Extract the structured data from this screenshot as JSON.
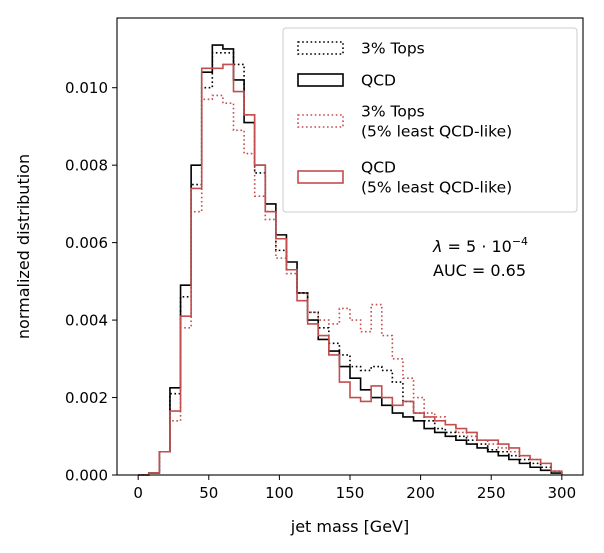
{
  "chart_data": {
    "type": "histogram-step",
    "xlabel": "jet mass [GeV]",
    "ylabel": "normalized distribution",
    "xlim": [
      -15,
      315
    ],
    "ylim": [
      0,
      0.0118
    ],
    "xticks": [
      0,
      50,
      100,
      150,
      200,
      250,
      300
    ],
    "xtick_labels": [
      "0",
      "50",
      "100",
      "150",
      "200",
      "250",
      "300"
    ],
    "yticks": [
      0,
      0.002,
      0.004,
      0.006,
      0.008,
      0.01
    ],
    "ytick_labels": [
      "0.000",
      "0.002",
      "0.004",
      "0.006",
      "0.008",
      "0.010"
    ],
    "grid": false,
    "legend_position": "top-right",
    "bin_edges": [
      0,
      7.5,
      15,
      22.5,
      30,
      37.5,
      45,
      52.5,
      60,
      67.5,
      75,
      82.5,
      90,
      97.5,
      105,
      112.5,
      120,
      127.5,
      135,
      142.5,
      150,
      157.5,
      165,
      172.5,
      180,
      187.5,
      195,
      202.5,
      210,
      217.5,
      225,
      232.5,
      240,
      247.5,
      255,
      262.5,
      270,
      277.5,
      285,
      292.5,
      300
    ],
    "series": [
      {
        "name": "3% Tops",
        "color": "#000000",
        "linestyle": "dotted",
        "values": [
          0.0,
          5e-05,
          0.0006,
          0.0021,
          0.0046,
          0.0075,
          0.01,
          0.0109,
          0.0109,
          0.0106,
          0.0093,
          0.0078,
          0.0068,
          0.0058,
          0.0053,
          0.0047,
          0.0042,
          0.0038,
          0.0034,
          0.0031,
          0.0028,
          0.0027,
          0.0028,
          0.0027,
          0.0024,
          0.0019,
          0.0016,
          0.0014,
          0.0012,
          0.0011,
          0.001,
          0.0009,
          0.0008,
          0.00065,
          0.0006,
          0.0005,
          0.0004,
          0.0003,
          0.0002,
          0.0001
        ]
      },
      {
        "name": "QCD",
        "color": "#000000",
        "linestyle": "solid",
        "values": [
          0.0,
          5e-05,
          0.0006,
          0.00225,
          0.0049,
          0.008,
          0.0104,
          0.0111,
          0.011,
          0.0102,
          0.0091,
          0.008,
          0.007,
          0.0062,
          0.0055,
          0.0047,
          0.004,
          0.0035,
          0.0032,
          0.0028,
          0.0025,
          0.0022,
          0.002,
          0.0018,
          0.0016,
          0.0015,
          0.0014,
          0.0012,
          0.0011,
          0.001,
          0.0009,
          0.0008,
          0.0007,
          0.0006,
          0.0005,
          0.0004,
          0.0003,
          0.0002,
          0.00012,
          5e-05
        ]
      },
      {
        "name": "3% Tops\n(5% least QCD-like)",
        "color": "#c44e4e",
        "linestyle": "dotted",
        "values": [
          0.0,
          5e-05,
          0.0006,
          0.0014,
          0.0038,
          0.0068,
          0.0097,
          0.0098,
          0.0096,
          0.0089,
          0.0083,
          0.0072,
          0.0066,
          0.0056,
          0.0052,
          0.0047,
          0.0042,
          0.004,
          0.0039,
          0.0043,
          0.004,
          0.0037,
          0.0044,
          0.0036,
          0.003,
          0.0025,
          0.002,
          0.0016,
          0.0015,
          0.0013,
          0.0011,
          0.001,
          0.0009,
          0.0008,
          0.0007,
          0.0006,
          0.0005,
          0.0004,
          0.0003,
          0.0001
        ]
      },
      {
        "name": "QCD\n(5% least QCD-like)",
        "color": "#c44e4e",
        "linestyle": "solid",
        "values": [
          0.0,
          5e-05,
          0.0006,
          0.00165,
          0.0041,
          0.0074,
          0.0105,
          0.0105,
          0.0106,
          0.0099,
          0.0093,
          0.008,
          0.0068,
          0.0061,
          0.0053,
          0.0045,
          0.0039,
          0.0036,
          0.0031,
          0.0024,
          0.002,
          0.0019,
          0.0023,
          0.002,
          0.0018,
          0.0019,
          0.0016,
          0.0015,
          0.0014,
          0.0013,
          0.0012,
          0.0011,
          0.0009,
          0.0009,
          0.0008,
          0.0007,
          0.0005,
          0.0004,
          0.0003,
          0.0001
        ]
      }
    ],
    "annotations": [
      {
        "text_prefix": "λ = 5 · 10",
        "superscript": "−4"
      },
      {
        "text": "AUC = 0.65"
      }
    ]
  }
}
